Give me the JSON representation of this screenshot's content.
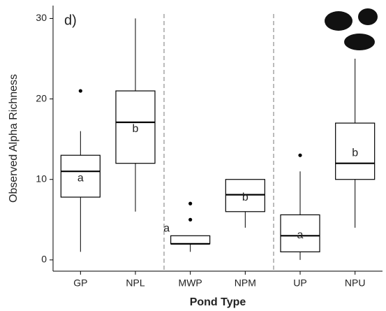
{
  "chart_data": {
    "type": "boxplot",
    "panel_label": "d)",
    "x_label": "Pond Type",
    "y_label": "Observed Alpha Richness",
    "categories": [
      "GP",
      "NPL",
      "MWP",
      "NPM",
      "UP",
      "NPU"
    ],
    "min": [
      1,
      6,
      1,
      4,
      0,
      4
    ],
    "q1": [
      7.8,
      12,
      2,
      6,
      1,
      10
    ],
    "median": [
      11,
      17.1,
      2,
      8.1,
      3,
      12
    ],
    "q3": [
      13,
      21,
      3,
      10,
      5.6,
      17
    ],
    "max": [
      16,
      30,
      3,
      10,
      11,
      25
    ],
    "outliers": [
      [
        21
      ],
      [],
      [
        5,
        7
      ],
      [],
      [
        13
      ],
      []
    ],
    "letters": [
      "a",
      "b",
      "a",
      "b",
      "a",
      "b"
    ],
    "ylim": [
      -1.4,
      31.6
    ],
    "yticks": [
      0,
      10,
      20,
      30
    ],
    "color": "#000000"
  }
}
